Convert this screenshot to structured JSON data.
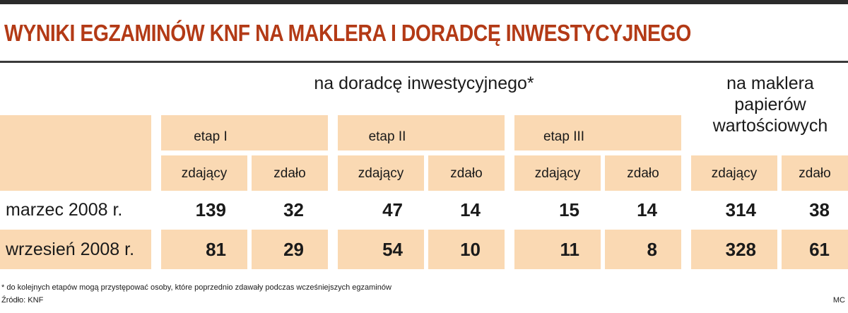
{
  "title": "WYNIKI EGZAMINÓW KNF NA MAKLERA I DORADCĘ INWESTYCYJNEGO",
  "footnote": "* do kolejnych etapów mogą przystępować osoby, które poprzednio zdawały podczas wcześniejszych egzaminów",
  "source": "Źródło: KNF",
  "credit": "MC",
  "chart_data": {
    "type": "table",
    "title": "WYNIKI EGZAMINÓW KNF NA MAKLERA I DORADCĘ INWESTYCYJNEGO",
    "super_headers": [
      "na doradcę inwestycyjnego*",
      "na maklera papierów wartościowych"
    ],
    "stage_headers": [
      "etap I",
      "etap II",
      "etap III"
    ],
    "columns": [
      "zdający",
      "zdało",
      "zdający",
      "zdało",
      "zdający",
      "zdało",
      "zdający",
      "zdało"
    ],
    "rows": [
      {
        "label": "marzec 2008 r.",
        "values": [
          139,
          32,
          47,
          14,
          15,
          14,
          314,
          38
        ]
      },
      {
        "label": "wrzesień 2008 r.",
        "values": [
          81,
          29,
          54,
          10,
          11,
          8,
          328,
          61
        ]
      }
    ]
  }
}
